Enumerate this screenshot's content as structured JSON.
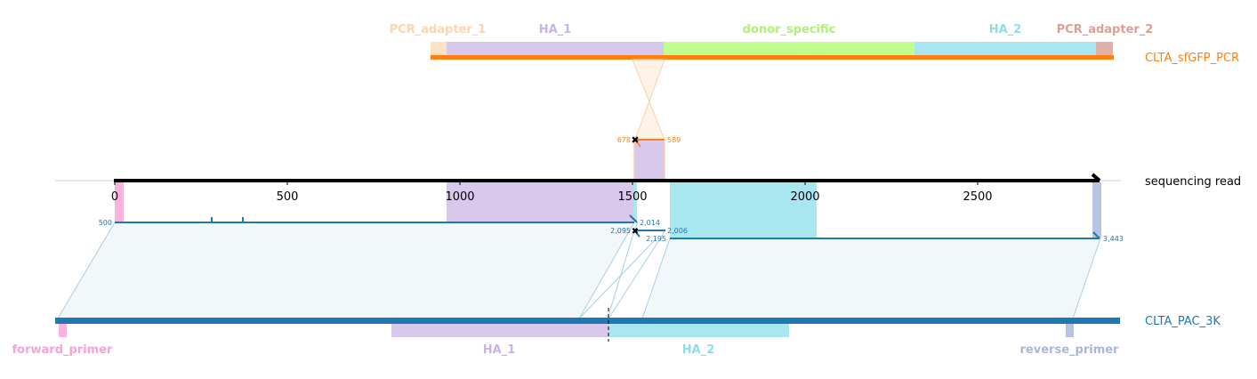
{
  "pcr": {
    "name": "CLTA_sfGFP_PCR",
    "features": [
      "PCR_adapter_1",
      "HA_1",
      "donor_specific",
      "HA_2",
      "PCR_adapter_2"
    ],
    "junction_labels": [
      "678",
      "589"
    ]
  },
  "read": {
    "name": "sequencing read",
    "ticks": [
      "0",
      "500",
      "1000",
      "1500",
      "2000",
      "2500"
    ],
    "alignment_labels": [
      "500",
      "2,014",
      "2,095",
      "2,006",
      "2,195",
      "3,443"
    ]
  },
  "target": {
    "name": "CLTA_PAC_3K",
    "features": [
      "forward_primer",
      "HA_1",
      "HA_2",
      "reverse_primer"
    ]
  },
  "colors": {
    "pcr_track": "#ff7f0e",
    "read_track": "#000000",
    "target_track": "#1f77b4",
    "PCR_adapter": "#fdd8b5",
    "PCR_adapter_2": "#dcaaa0",
    "HA_1": "#c9b3e0",
    "donor_specific": "#c0ff8c",
    "HA_2": "#9fe0ec",
    "forward_primer": "#f9b3de",
    "reverse_primer": "#b7c3e0"
  }
}
